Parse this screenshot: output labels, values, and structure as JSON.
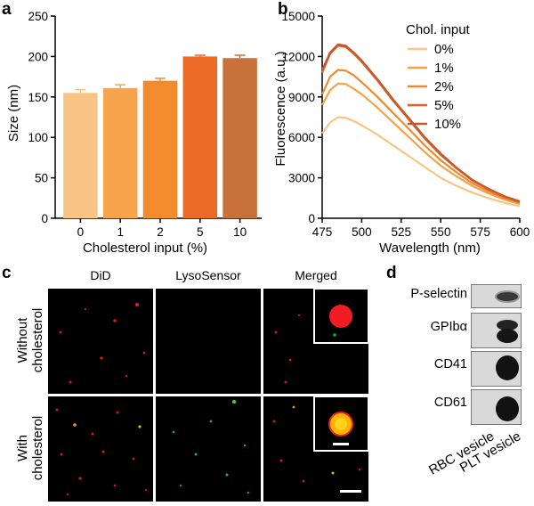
{
  "panels": {
    "a": "a",
    "b": "b",
    "c": "c",
    "d": "d"
  },
  "chart_data": [
    {
      "type": "bar",
      "panel": "a",
      "title": "",
      "categories": [
        "0",
        "1",
        "2",
        "5",
        "10"
      ],
      "values": [
        155,
        161,
        170,
        200,
        198
      ],
      "errors": [
        4,
        4,
        3,
        1.5,
        3.5
      ],
      "colors": [
        "#f9c485",
        "#f7a44c",
        "#f28a2e",
        "#ea6a26",
        "#c8713a"
      ],
      "xlabel": "Cholesterol input (%)",
      "ylabel": "Size (nm)",
      "ylim": [
        0,
        250
      ],
      "yticks": [
        0,
        50,
        100,
        150,
        200,
        250
      ]
    },
    {
      "type": "line",
      "panel": "b",
      "title": "",
      "xlabel": "Wavelength (nm)",
      "ylabel": "Fluorescence (a.u.)",
      "xlim": [
        475,
        600
      ],
      "ylim": [
        0,
        15000
      ],
      "xticks": [
        475,
        500,
        525,
        550,
        575,
        600
      ],
      "yticks": [
        0,
        3000,
        6000,
        9000,
        12000,
        15000
      ],
      "legend_title": "Chol. input",
      "legend_position": "top-right",
      "x": [
        475,
        480,
        485,
        490,
        495,
        500,
        510,
        520,
        530,
        540,
        550,
        560,
        570,
        580,
        590,
        600
      ],
      "series": [
        {
          "name": "0%",
          "color": "#f9c485",
          "values": [
            6300,
            7100,
            7500,
            7450,
            7200,
            6900,
            6200,
            5400,
            4600,
            3800,
            3000,
            2400,
            1900,
            1500,
            1150,
            900
          ]
        },
        {
          "name": "1%",
          "color": "#f5a347",
          "values": [
            8400,
            9500,
            10000,
            9950,
            9600,
            9200,
            8200,
            7100,
            6000,
            4900,
            3900,
            3100,
            2400,
            1850,
            1400,
            1050
          ]
        },
        {
          "name": "2%",
          "color": "#ef8a30",
          "values": [
            9200,
            10500,
            11000,
            10950,
            10600,
            10100,
            9000,
            7800,
            6600,
            5400,
            4300,
            3400,
            2600,
            2000,
            1500,
            1150
          ]
        },
        {
          "name": "5%",
          "color": "#e2602a",
          "values": [
            10800,
            12200,
            12800,
            12700,
            12200,
            11600,
            10200,
            8700,
            7300,
            5900,
            4700,
            3700,
            2800,
            2150,
            1600,
            1200
          ]
        },
        {
          "name": "10%",
          "color": "#c05a2c",
          "values": [
            11000,
            12300,
            12900,
            12800,
            12300,
            11700,
            10300,
            8800,
            7400,
            6000,
            4800,
            3750,
            2850,
            2200,
            1650,
            1250
          ]
        }
      ]
    }
  ],
  "microscopy": {
    "columns": [
      "DiD",
      "LysoSensor",
      "Merged"
    ],
    "rows": [
      "Without\ncholesterol",
      "With\ncholesterol"
    ],
    "row_line1": [
      "Without",
      "With"
    ],
    "row_line2": [
      "cholesterol",
      "cholesterol"
    ]
  },
  "western_blot": {
    "proteins": [
      "P-selectin",
      "GPIbα",
      "CD41",
      "CD61"
    ],
    "lanes": [
      "RBC vesicle",
      "PLT vesicle"
    ]
  }
}
